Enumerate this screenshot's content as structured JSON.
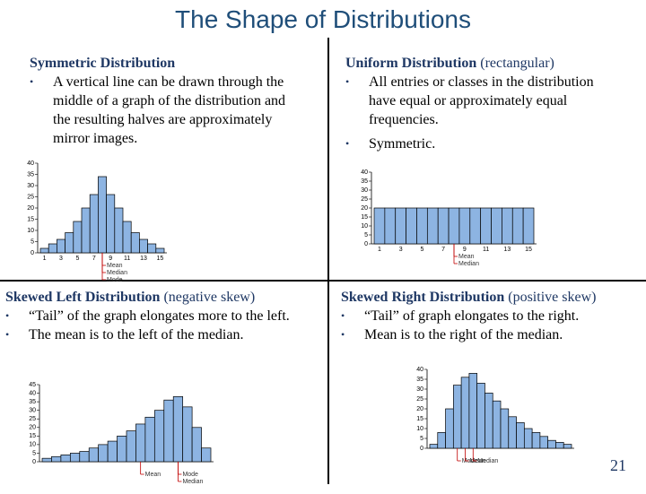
{
  "title": "The Shape of Distributions",
  "page_number": "21",
  "panels": [
    {
      "heading": "Symmetric Distribution",
      "bullets": [
        "A vertical line can be drawn through the middle of  a graph of the distribution and the resulting halves are approximately mirror images."
      ],
      "histogram": {
        "ylim": [
          0,
          40
        ],
        "yticks": [
          0,
          5,
          10,
          15,
          20,
          25,
          30,
          35,
          40
        ],
        "values": [
          2,
          4,
          6,
          9,
          14,
          20,
          26,
          34,
          26,
          20,
          14,
          9,
          6,
          4,
          2
        ],
        "bin_labels": [
          1,
          3,
          5,
          7,
          9,
          11,
          13,
          15
        ],
        "markers": [
          "Mean",
          "Median",
          "Mode"
        ]
      }
    },
    {
      "heading": "Uniform Distribution",
      "note": "(rectangular)",
      "bullets": [
        "All entries or classes in the distribution have equal or approximately equal frequencies.",
        "Symmetric."
      ],
      "histogram": {
        "ylim": [
          0,
          40
        ],
        "yticks": [
          0,
          5,
          10,
          15,
          20,
          25,
          30,
          35,
          40
        ],
        "values": [
          20,
          20,
          20,
          20,
          20,
          20,
          20,
          20,
          20,
          20,
          20,
          20,
          20,
          20,
          20
        ],
        "bin_labels": [
          1,
          3,
          5,
          7,
          9,
          11,
          13,
          15
        ],
        "markers": [
          "Mean",
          "Median"
        ]
      }
    },
    {
      "heading": "Skewed Left Distribution",
      "note": "(negative skew)",
      "bullets": [
        "“Tail” of the graph elongates more to the left.",
        "The mean is to the left of the median."
      ],
      "histogram": {
        "ylim": [
          0,
          45
        ],
        "yticks": [
          0,
          5,
          10,
          15,
          20,
          25,
          30,
          35,
          40,
          45
        ],
        "values": [
          2,
          3,
          4,
          5,
          6,
          8,
          10,
          12,
          15,
          18,
          22,
          26,
          30,
          36,
          38,
          32,
          20,
          8
        ],
        "markers": [
          "Mean",
          "Mode",
          "Median"
        ]
      }
    },
    {
      "heading": "Skewed Right Distribution",
      "note": "(positive skew)",
      "bullets": [
        "“Tail” of graph elongates to the right.",
        "Mean is to the right of the median."
      ],
      "histogram": {
        "ylim": [
          0,
          40
        ],
        "yticks": [
          0,
          5,
          10,
          15,
          20,
          25,
          30,
          35,
          40
        ],
        "values": [
          2,
          8,
          20,
          32,
          36,
          38,
          33,
          28,
          24,
          20,
          16,
          13,
          10,
          8,
          6,
          4,
          3,
          2
        ],
        "markers": [
          "Mode",
          "Mean",
          "Median"
        ]
      }
    }
  ]
}
